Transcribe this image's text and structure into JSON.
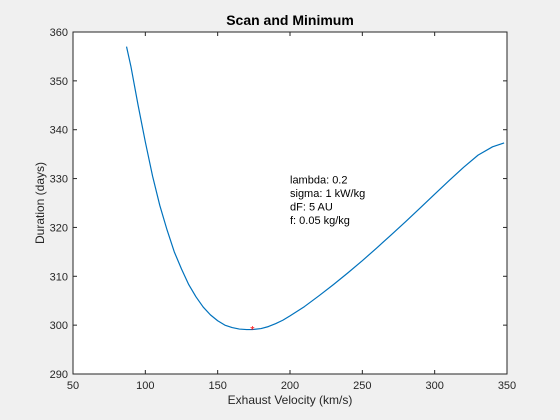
{
  "chart_data": {
    "type": "line",
    "title": "Scan and Minimum",
    "xlabel": "Exhaust Velocity (km/s)",
    "ylabel": "Duration (days)",
    "xlim": [
      50,
      350
    ],
    "ylim": [
      290,
      360
    ],
    "xticks": [
      50,
      100,
      150,
      200,
      250,
      300,
      350
    ],
    "yticks": [
      290,
      300,
      310,
      320,
      330,
      340,
      350,
      360
    ],
    "grid": false,
    "series": [
      {
        "name": "duration",
        "color": "#0072BD",
        "x": [
          87,
          90,
          95,
          100,
          105,
          110,
          115,
          120,
          125,
          130,
          135,
          140,
          145,
          150,
          155,
          160,
          165,
          170,
          174,
          180,
          185,
          190,
          195,
          200,
          210,
          220,
          230,
          240,
          250,
          260,
          270,
          280,
          290,
          300,
          310,
          320,
          330,
          340,
          348
        ],
        "y": [
          357,
          353,
          345,
          337.5,
          330.5,
          324.5,
          319.5,
          315,
          311.5,
          308.3,
          305.8,
          303.7,
          302.1,
          300.9,
          300.0,
          299.5,
          299.2,
          299.1,
          299.1,
          299.3,
          299.7,
          300.3,
          301.0,
          301.9,
          303.8,
          306.0,
          308.3,
          310.7,
          313.2,
          315.8,
          318.5,
          321.2,
          324.0,
          326.8,
          329.6,
          332.3,
          334.8,
          336.5,
          337.3
        ]
      }
    ],
    "minimum": {
      "x": 174,
      "y": 299.1,
      "marker": "*",
      "color": "#ff0000"
    },
    "annotation": {
      "x": 200,
      "y": 329,
      "lines": [
        "lambda: 0.2",
        "sigma: 1 kW/kg",
        "dF: 5 AU",
        "f: 0.05 kg/kg"
      ]
    }
  }
}
